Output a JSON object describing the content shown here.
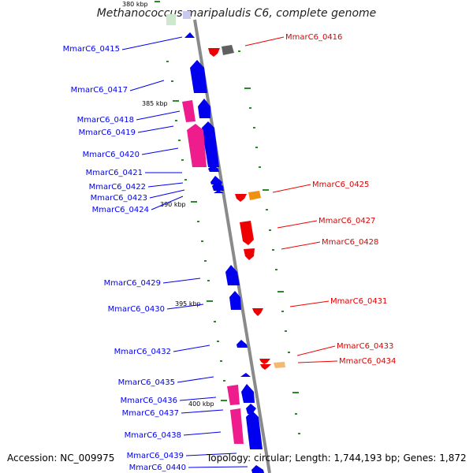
{
  "title": "Methanococcus maripaludis C6, complete genome",
  "accession": "Accession: NC_009975",
  "summary": "Topology: circular; Length: 1,744,193 bp; Genes: 1,872",
  "colors": {
    "reverse_gene": "#0000ee",
    "forward_gene": "#ee0000",
    "rna_gene": "#ee1c8c",
    "other_gene": "#606060",
    "orange_gene": "#f09010",
    "tick": "#2a8a2a"
  },
  "kbp_ticks": [
    {
      "label": "380 kbp"
    },
    {
      "label": "385 kbp"
    },
    {
      "label": "390 kbp"
    },
    {
      "label": "395 kbp"
    },
    {
      "label": "400 kbp"
    }
  ],
  "left_labels": [
    {
      "text": "MmarC6_0415"
    },
    {
      "text": "MmarC6_0417"
    },
    {
      "text": "MmarC6_0418"
    },
    {
      "text": "MmarC6_0419"
    },
    {
      "text": "MmarC6_0420"
    },
    {
      "text": "MmarC6_0421"
    },
    {
      "text": "MmarC6_0422"
    },
    {
      "text": "MmarC6_0423"
    },
    {
      "text": "MmarC6_0424"
    },
    {
      "text": "MmarC6_0429"
    },
    {
      "text": "MmarC6_0430"
    },
    {
      "text": "MmarC6_0432"
    },
    {
      "text": "MmarC6_0435"
    },
    {
      "text": "MmarC6_0436"
    },
    {
      "text": "MmarC6_0437"
    },
    {
      "text": "MmarC6_0438"
    },
    {
      "text": "MmarC6_0439"
    },
    {
      "text": "MmarC6_0440"
    }
  ],
  "right_labels": [
    {
      "text": "MmarC6_0416"
    },
    {
      "text": "MmarC6_0425"
    },
    {
      "text": "MmarC6_0427"
    },
    {
      "text": "MmarC6_0428"
    },
    {
      "text": "MmarC6_0431"
    },
    {
      "text": "MmarC6_0433"
    },
    {
      "text": "MmarC6_0434"
    }
  ]
}
